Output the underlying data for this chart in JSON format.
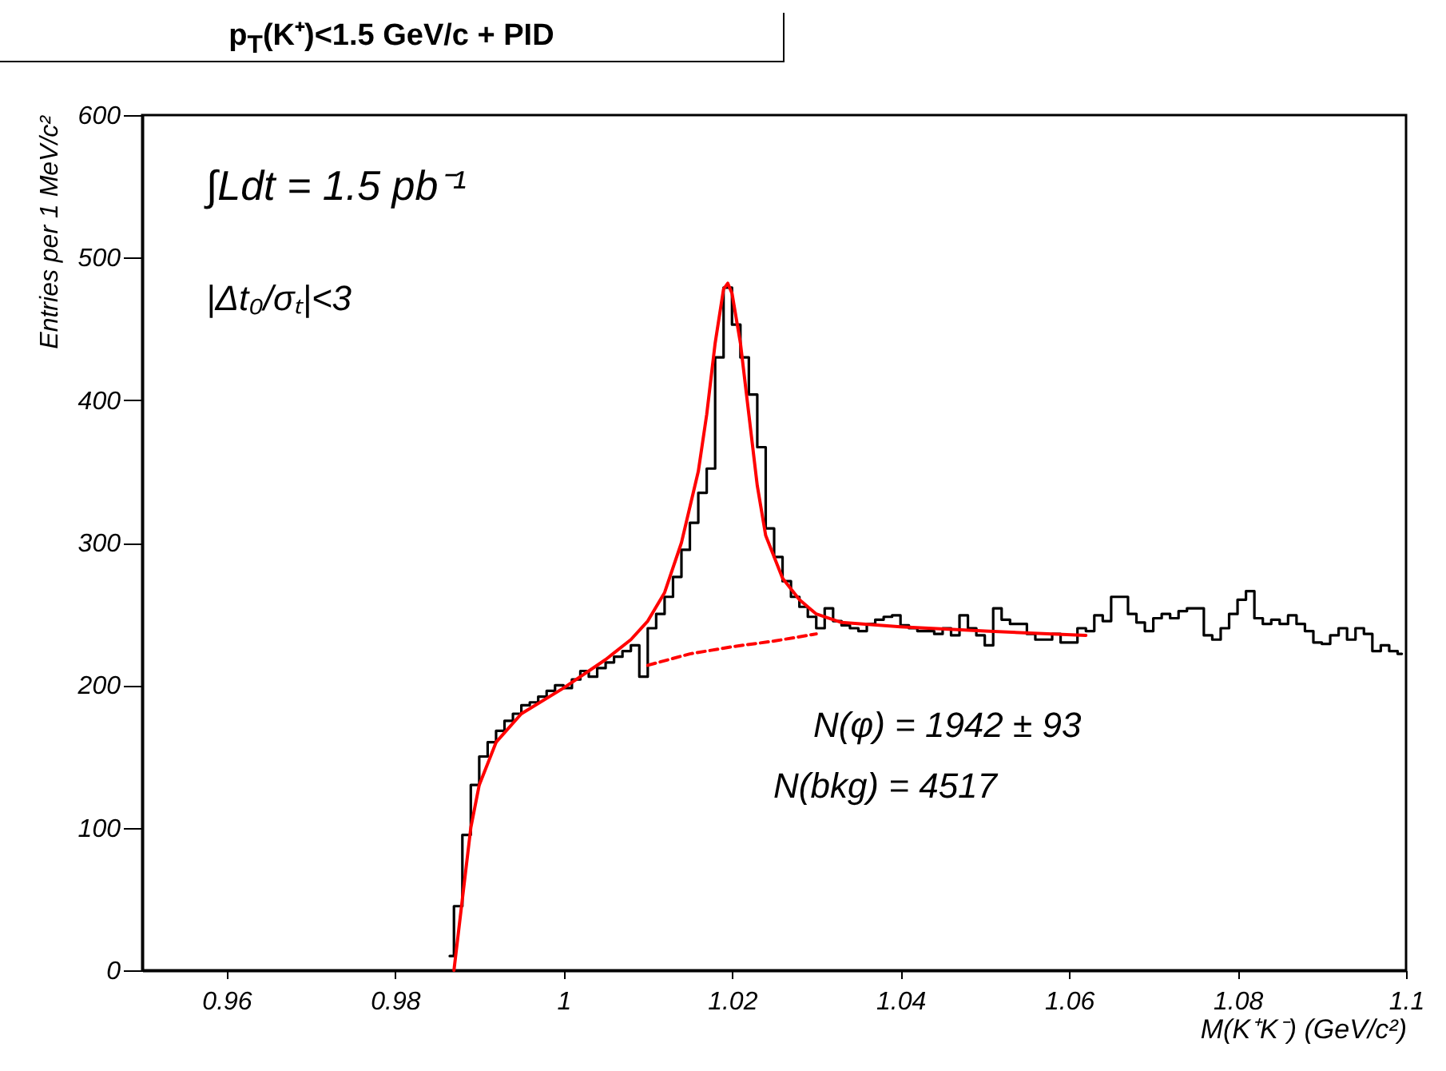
{
  "chart_data": {
    "type": "step",
    "title": "p$_{T}$(K⁺)<1.5 GeV/c + PID",
    "xlabel": "M(K⁺K⁻) (GeV/c²)",
    "ylabel": "Entries per 1 MeV/c²",
    "annotations": [
      "∫Ldt = 1.5 pb⁻¹",
      "|Δt₀/σₜ|<3",
      "N(φ) =  1942 ± 93",
      "N(bkg) =  4517"
    ],
    "xlim": [
      0.95,
      1.1
    ],
    "xticks": [
      0.96,
      0.98,
      1,
      1.02,
      1.04,
      1.06,
      1.08,
      1.1
    ],
    "ylim": [
      0,
      600
    ],
    "yticks": [
      0,
      100,
      200,
      300,
      400,
      500,
      600
    ],
    "series": [
      {
        "color": "#000000",
        "x": [
          0.9865,
          0.9875,
          0.9885,
          0.9895,
          0.9905,
          0.9915,
          0.9925,
          0.9935,
          0.9945,
          0.9955,
          0.9965,
          0.9975,
          0.9985,
          0.9995,
          1.0005,
          1.0015,
          1.0025,
          1.0035,
          1.0045,
          1.0055,
          1.0065,
          1.0075,
          1.0085,
          1.0095,
          1.0105,
          1.0115,
          1.0125,
          1.0135,
          1.0145,
          1.0155,
          1.0165,
          1.0175,
          1.0185,
          1.0195,
          1.0205,
          1.0215,
          1.0225,
          1.0235,
          1.0245,
          1.0255,
          1.0265,
          1.0275,
          1.0285,
          1.0295,
          1.0305,
          1.0315,
          1.0325,
          1.0335,
          1.0345,
          1.0355,
          1.0365,
          1.0375,
          1.0385,
          1.0395,
          1.0405,
          1.0415,
          1.0425,
          1.0435,
          1.0445,
          1.0455,
          1.0465,
          1.0475,
          1.0485,
          1.0495,
          1.0505,
          1.0515,
          1.0525,
          1.0535,
          1.0545,
          1.0555,
          1.0565,
          1.0575,
          1.0585,
          1.0595,
          1.0605,
          1.0615,
          1.0625,
          1.0635,
          1.0645,
          1.0655,
          1.0665,
          1.0675,
          1.0685,
          1.0695,
          1.0705,
          1.0715,
          1.0725,
          1.0735,
          1.0745,
          1.0755,
          1.0765,
          1.0775,
          1.0785,
          1.0795,
          1.0805,
          1.0815,
          1.0825,
          1.0835,
          1.0845,
          1.0855,
          1.0865,
          1.0875,
          1.0885,
          1.0895,
          1.0905,
          1.0915,
          1.0925,
          1.0935,
          1.0945,
          1.0955,
          1.0965,
          1.0975,
          1.0985,
          1.0995
        ],
        "values": [
          10,
          45,
          95,
          130,
          150,
          160,
          168,
          175,
          180,
          186,
          188,
          192,
          196,
          200,
          198,
          204,
          210,
          206,
          212,
          216,
          220,
          224,
          228,
          206,
          240,
          250,
          262,
          276,
          295,
          314,
          335,
          352,
          430,
          479,
          453,
          430,
          404,
          367,
          310,
          290,
          273,
          262,
          255,
          248,
          240,
          254,
          245,
          242,
          240,
          238,
          243,
          246,
          248,
          249,
          242,
          240,
          238,
          238,
          236,
          240,
          235,
          249,
          240,
          235,
          228,
          254,
          246,
          243,
          243,
          236,
          232,
          232,
          236,
          230,
          230,
          240,
          238,
          249,
          245,
          262,
          262,
          250,
          244,
          238,
          247,
          250,
          247,
          252,
          254,
          254,
          235,
          232,
          240,
          250,
          260,
          266,
          247,
          243,
          246,
          243,
          249,
          243,
          238,
          230,
          229,
          235,
          240,
          232,
          240,
          236,
          224,
          228,
          224,
          222
        ]
      },
      {
        "type": "line",
        "color": "#ff0000",
        "line_style": "solid",
        "x": [
          0.987,
          0.988,
          0.989,
          0.99,
          0.992,
          0.995,
          1.0,
          1.005,
          1.008,
          1.01,
          1.012,
          1.014,
          1.016,
          1.017,
          1.018,
          1.019,
          1.0195,
          1.02,
          1.021,
          1.022,
          1.023,
          1.024,
          1.026,
          1.028,
          1.03,
          1.033,
          1.04,
          1.05,
          1.062
        ],
        "values": [
          0,
          50,
          100,
          130,
          160,
          180,
          198,
          218,
          232,
          245,
          265,
          300,
          350,
          390,
          440,
          478,
          482,
          475,
          440,
          390,
          340,
          305,
          275,
          260,
          250,
          244,
          241,
          238,
          235
        ]
      },
      {
        "type": "line",
        "color": "#ff0000",
        "line_style": "dashed",
        "x": [
          1.01,
          1.015,
          1.02,
          1.025,
          1.03
        ],
        "values": [
          214,
          222,
          227,
          231,
          236
        ]
      }
    ]
  }
}
